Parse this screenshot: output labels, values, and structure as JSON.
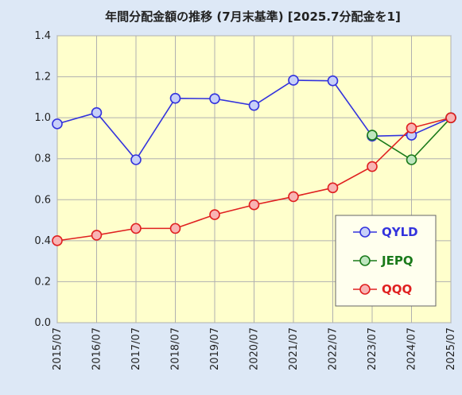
{
  "chart_data": {
    "type": "line",
    "title": "年間分配金額の推移 (7月末基準) [2025.7分配金を1]",
    "xlabel": "",
    "ylabel": "",
    "categories": [
      "2015/07",
      "2016/07",
      "2017/07",
      "2018/07",
      "2019/07",
      "2020/07",
      "2021/07",
      "2022/07",
      "2023/07",
      "2024/07",
      "2025/07"
    ],
    "ylim": [
      0,
      1.4
    ],
    "yticks": [
      "0.0",
      "0.2",
      "0.4",
      "0.6",
      "0.8",
      "1.0",
      "1.2",
      "1.4"
    ],
    "grid": true,
    "legend_position": "bottom-right",
    "plot_background": "#ffffcc",
    "series": [
      {
        "name": "QYLD",
        "color": "#3333dd",
        "marker_fill": "#c8d0f8",
        "values": [
          0.97,
          1.025,
          0.795,
          1.095,
          1.093,
          1.06,
          1.183,
          1.18,
          0.91,
          0.915,
          1.0
        ]
      },
      {
        "name": "JEPQ",
        "color": "#1a7a1a",
        "marker_fill": "#bfe6bf",
        "values": [
          null,
          null,
          null,
          null,
          null,
          null,
          null,
          null,
          0.915,
          0.795,
          1.0
        ]
      },
      {
        "name": "QQQ",
        "color": "#e02020",
        "marker_fill": "#f8b4b4",
        "values": [
          0.4,
          0.427,
          0.46,
          0.46,
          0.527,
          0.575,
          0.615,
          0.658,
          0.762,
          0.95,
          1.0
        ]
      }
    ]
  }
}
